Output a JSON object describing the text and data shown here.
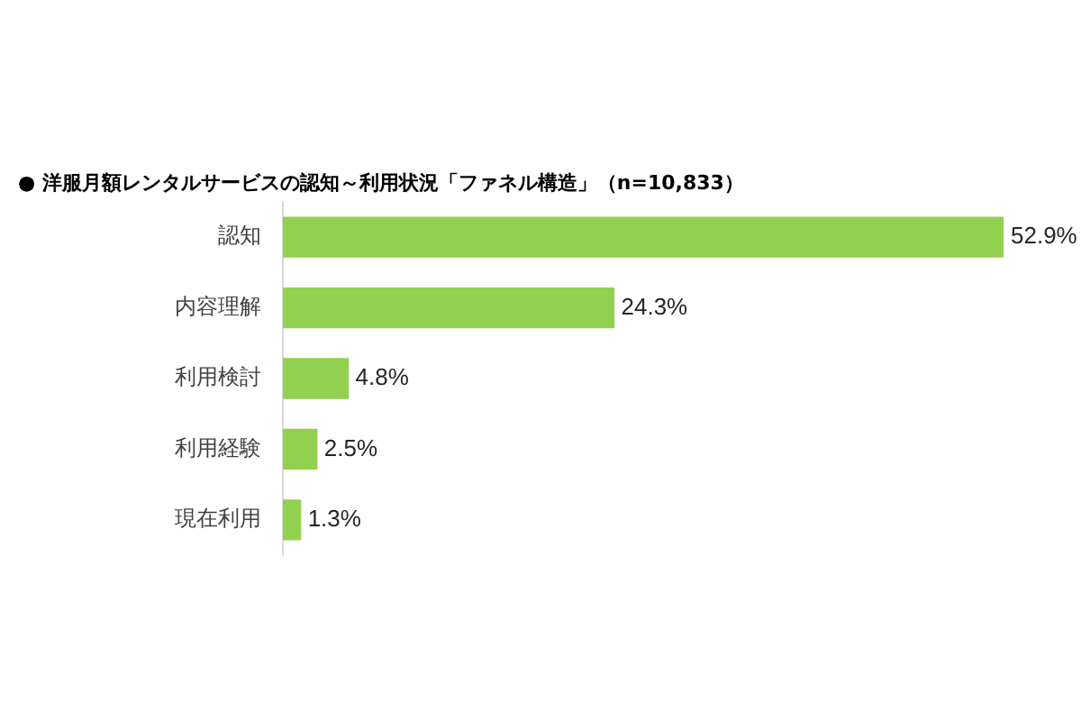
{
  "chart_data": {
    "type": "bar",
    "orientation": "horizontal",
    "title": "● 洋服月額レンタルサービスの認知～利用状況「ファネル構造」（n=10,833）",
    "categories": [
      "認知",
      "内容理解",
      "利用検討",
      "利用経験",
      "現在利用"
    ],
    "values": [
      52.9,
      24.3,
      4.8,
      2.5,
      1.3
    ],
    "color": "#92d050",
    "value_labels": [
      "52.9%",
      "24.3%",
      "4.8%",
      "2.5%",
      "1.3%"
    ],
    "tick_labels": "y",
    "grid": false,
    "legend": false
  }
}
